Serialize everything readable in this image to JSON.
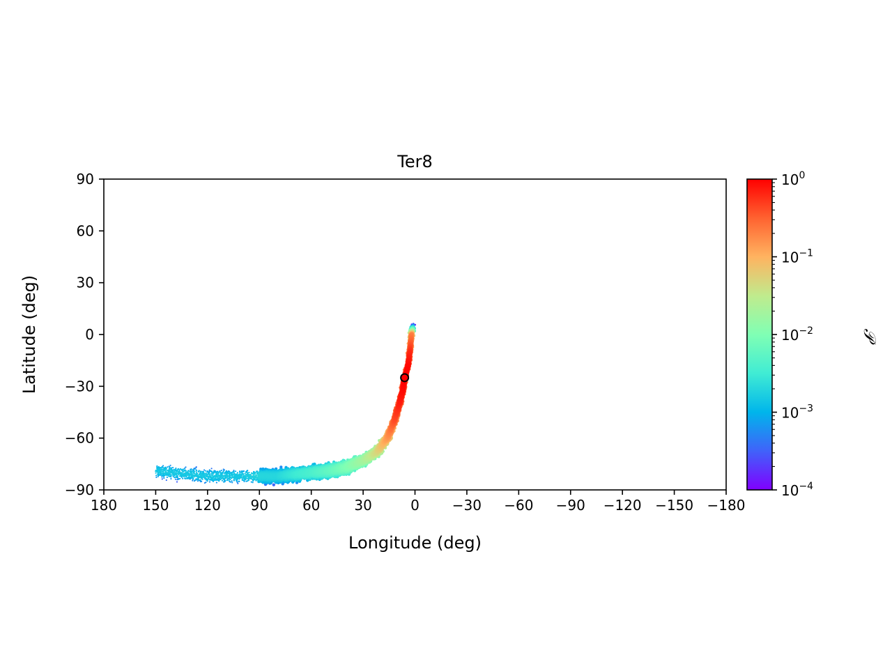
{
  "chart_data": {
    "type": "scatter",
    "title": "Ter8",
    "xlabel": "Longitude (deg)",
    "ylabel": "Latitude (deg)",
    "xlim": [
      180,
      -180
    ],
    "ylim": [
      -90,
      90
    ],
    "xticks": [
      180,
      150,
      120,
      90,
      60,
      30,
      0,
      -30,
      -60,
      -90,
      -120,
      -150,
      -180
    ],
    "xtick_labels": [
      "180",
      "150",
      "120",
      "90",
      "60",
      "30",
      "0",
      "−30",
      "−60",
      "−90",
      "−120",
      "−150",
      "−180"
    ],
    "yticks": [
      90,
      60,
      30,
      0,
      -30,
      -60,
      -90
    ],
    "ytick_labels": [
      "90",
      "60",
      "30",
      "0",
      "−30",
      "−60",
      "−90"
    ],
    "grid": false,
    "colorbar": {
      "label": "𝒫",
      "scale": "log",
      "range": [
        0.0001,
        1
      ],
      "colormap": "rainbow",
      "tick_bases": [
        "10",
        "10",
        "10",
        "10",
        "10"
      ],
      "tick_exponents": [
        "0",
        "−1",
        "−2",
        "−3",
        "−4"
      ],
      "tick_values": [
        1,
        0.1,
        0.01,
        0.001,
        0.0001
      ]
    },
    "stream_track": [
      {
        "lon": 1,
        "lat": 6,
        "p": 0.0003
      },
      {
        "lon": 2,
        "lat": 0,
        "p": 0.2
      },
      {
        "lon": 3,
        "lat": -10,
        "p": 0.6
      },
      {
        "lon": 4,
        "lat": -18,
        "p": 0.9
      },
      {
        "lon": 6,
        "lat": -25,
        "p": 1.0
      },
      {
        "lon": 7,
        "lat": -32,
        "p": 0.9
      },
      {
        "lon": 9,
        "lat": -40,
        "p": 0.7
      },
      {
        "lon": 12,
        "lat": -50,
        "p": 0.4
      },
      {
        "lon": 16,
        "lat": -60,
        "p": 0.15
      },
      {
        "lon": 22,
        "lat": -68,
        "p": 0.05
      },
      {
        "lon": 30,
        "lat": -73,
        "p": 0.02
      },
      {
        "lon": 40,
        "lat": -77,
        "p": 0.01
      },
      {
        "lon": 50,
        "lat": -79,
        "p": 0.006
      },
      {
        "lon": 60,
        "lat": -80,
        "p": 0.004
      },
      {
        "lon": 70,
        "lat": -81,
        "p": 0.003
      },
      {
        "lon": 80,
        "lat": -82,
        "p": 0.002
      },
      {
        "lon": 90,
        "lat": -82,
        "p": 0.002
      },
      {
        "lon": 100,
        "lat": -82,
        "p": 0.0015
      },
      {
        "lon": 110,
        "lat": -82,
        "p": 0.0015
      },
      {
        "lon": 120,
        "lat": -82,
        "p": 0.0015
      },
      {
        "lon": 130,
        "lat": -81,
        "p": 0.0015
      },
      {
        "lon": 140,
        "lat": -80,
        "p": 0.0015
      },
      {
        "lon": 150,
        "lat": -79,
        "p": 0.0015
      }
    ],
    "cluster_marker": {
      "lon": 6,
      "lat": -25,
      "color": "#ff0000"
    }
  }
}
